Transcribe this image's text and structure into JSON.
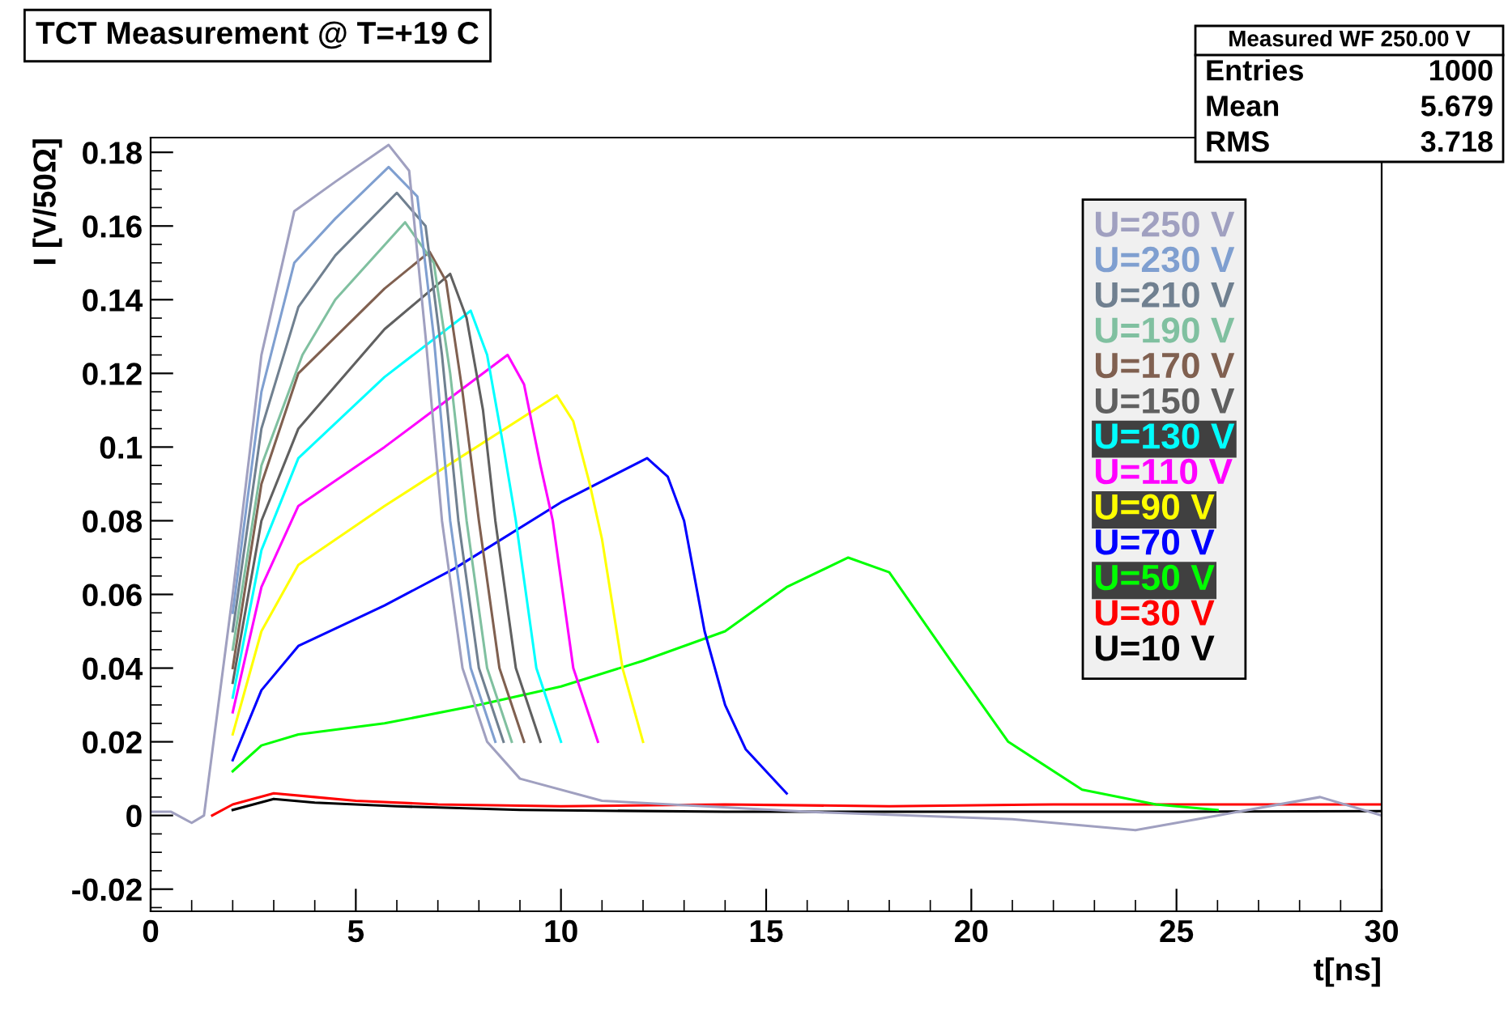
{
  "chart_data": {
    "type": "line",
    "title": "TCT Measurement @ T=+19 C",
    "xlabel": "t[ns]",
    "ylabel": "I [V/50Ω]",
    "xlim": [
      0,
      30
    ],
    "xticks": [
      0,
      5,
      10,
      15,
      20,
      25,
      30
    ],
    "ylim": [
      -0.026,
      0.184
    ],
    "yticks": [
      -0.02,
      0,
      0.02,
      0.04,
      0.06,
      0.08,
      0.1,
      0.12,
      0.14,
      0.16,
      0.18
    ],
    "grid": false,
    "legend": "top right",
    "marker": "none",
    "line_style": "solid",
    "annotations": [
      "Measured WF 250.00 V",
      "Entries",
      "1000",
      "Mean",
      "5.679",
      "RMS",
      "3.718"
    ],
    "series": [
      {
        "name": "U=250 V",
        "color": "#a0a0c0",
        "x": [
          0,
          0.5,
          1,
          1.3,
          2,
          2.7,
          3.5,
          4.5,
          5.8,
          6.3,
          6.7,
          7.1,
          7.6,
          8.2,
          9,
          11,
          16,
          21,
          24,
          26,
          28.5,
          30
        ],
        "values": [
          0.001,
          0.001,
          -0.002,
          0,
          0.06,
          0.125,
          0.164,
          0.172,
          0.182,
          0.175,
          0.13,
          0.08,
          0.04,
          0.02,
          0.01,
          0.004,
          0.001,
          -0.001,
          -0.004,
          0,
          0.005,
          0
        ]
      },
      {
        "name": "U=230 V",
        "color": "#7f9fd0",
        "x": [
          2,
          2.7,
          3.5,
          4.5,
          5.8,
          6.5,
          6.9,
          7.3,
          7.8,
          8.4
        ],
        "values": [
          0.055,
          0.115,
          0.15,
          0.162,
          0.176,
          0.168,
          0.13,
          0.08,
          0.04,
          0.02
        ]
      },
      {
        "name": "U=210 V",
        "color": "#708090",
        "x": [
          2,
          2.7,
          3.6,
          4.5,
          6.0,
          6.7,
          7.1,
          7.5,
          8.0,
          8.6
        ],
        "values": [
          0.05,
          0.105,
          0.138,
          0.152,
          0.169,
          0.16,
          0.125,
          0.08,
          0.04,
          0.02
        ]
      },
      {
        "name": "U=190 V",
        "color": "#80c0a0",
        "x": [
          2,
          2.7,
          3.7,
          4.5,
          6.2,
          6.9,
          7.3,
          7.7,
          8.2,
          8.8
        ],
        "values": [
          0.045,
          0.095,
          0.125,
          0.14,
          0.161,
          0.15,
          0.12,
          0.08,
          0.04,
          0.02
        ]
      },
      {
        "name": "U=170 V",
        "color": "#806050",
        "x": [
          2,
          2.7,
          3.6,
          5.7,
          6.8,
          7.2,
          7.6,
          8.0,
          8.5,
          9.1
        ],
        "values": [
          0.04,
          0.09,
          0.12,
          0.143,
          0.153,
          0.145,
          0.115,
          0.08,
          0.04,
          0.02
        ]
      },
      {
        "name": "U=150 V",
        "color": "#606060",
        "x": [
          2,
          2.7,
          3.6,
          5.7,
          7.3,
          7.7,
          8.1,
          8.4,
          8.9,
          9.5
        ],
        "values": [
          0.036,
          0.08,
          0.105,
          0.132,
          0.147,
          0.135,
          0.11,
          0.08,
          0.04,
          0.02
        ]
      },
      {
        "name": "U=130 V",
        "color": "#00ffff",
        "x": [
          2,
          2.7,
          3.6,
          5.7,
          7.8,
          8.2,
          8.6,
          8.9,
          9.4,
          10
        ],
        "values": [
          0.032,
          0.072,
          0.097,
          0.119,
          0.137,
          0.125,
          0.1,
          0.08,
          0.04,
          0.02
        ]
      },
      {
        "name": "U=110 V",
        "color": "#ff00ff",
        "x": [
          2,
          2.7,
          3.6,
          5.7,
          8.7,
          9.1,
          9.5,
          9.8,
          10.3,
          10.9
        ],
        "values": [
          0.028,
          0.062,
          0.084,
          0.1,
          0.125,
          0.117,
          0.095,
          0.08,
          0.04,
          0.02
        ]
      },
      {
        "name": "U=90 V",
        "color": "#ffff00",
        "x": [
          2,
          2.7,
          3.6,
          5.7,
          9.9,
          10.3,
          10.7,
          11,
          11.5,
          12
        ],
        "values": [
          0.022,
          0.05,
          0.068,
          0.084,
          0.114,
          0.107,
          0.09,
          0.075,
          0.04,
          0.02
        ]
      },
      {
        "name": "U=70 V",
        "color": "#0000ff",
        "x": [
          2,
          2.7,
          3.6,
          5.7,
          7.4,
          10,
          12.1,
          12.6,
          13,
          13.5,
          14,
          14.5,
          15.5
        ],
        "values": [
          0.015,
          0.034,
          0.046,
          0.057,
          0.067,
          0.085,
          0.097,
          0.092,
          0.08,
          0.05,
          0.03,
          0.018,
          0.006
        ]
      },
      {
        "name": "U=50 V",
        "color": "#00ff00",
        "x": [
          2,
          2.7,
          3.6,
          5.7,
          8,
          10,
          12,
          14,
          15.5,
          17,
          18,
          19.5,
          20.9,
          22.7,
          24.5,
          26
        ],
        "values": [
          0.012,
          0.019,
          0.022,
          0.025,
          0.03,
          0.035,
          0.042,
          0.05,
          0.062,
          0.07,
          0.066,
          0.042,
          0.02,
          0.007,
          0.003,
          0.0015
        ]
      },
      {
        "name": "U=30 V",
        "color": "#ff0000",
        "x": [
          1.5,
          2,
          3,
          4,
          5,
          7,
          10,
          14,
          18,
          22,
          26,
          30
        ],
        "values": [
          0,
          0.003,
          0.006,
          0.005,
          0.004,
          0.003,
          0.0025,
          0.003,
          0.0025,
          0.003,
          0.003,
          0.003
        ]
      },
      {
        "name": "U=10 V",
        "color": "#000000",
        "x": [
          2,
          3,
          4,
          6,
          9,
          14,
          22,
          25,
          30
        ],
        "values": [
          0.0015,
          0.0045,
          0.0035,
          0.0025,
          0.0015,
          0.001,
          0.001,
          0.001,
          0.0012
        ]
      }
    ]
  }
}
